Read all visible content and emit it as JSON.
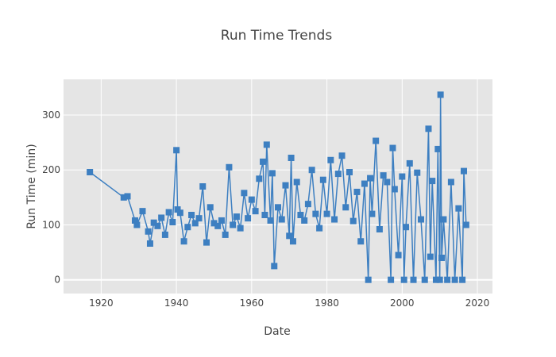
{
  "chart_data": {
    "type": "line",
    "title": "Run Time Trends",
    "xlabel": "Date",
    "ylabel": "Run Time (min)",
    "xlim": [
      1910,
      2024
    ],
    "ylim": [
      -25,
      365
    ],
    "x_ticks": [
      "1920",
      "1940",
      "1960",
      "1980",
      "2000",
      "2020"
    ],
    "y_ticks": [
      "0",
      "100",
      "200",
      "300"
    ],
    "grid": true,
    "legend": "none",
    "colors": {
      "series": "#3d7fc1",
      "plot_background": "#e5e5e5",
      "grid": "#ffffff"
    },
    "series": [
      {
        "marker": "square",
        "mode": "lines+markers",
        "x": [
          1917,
          1926,
          1927,
          1929,
          1929.5,
          1931,
          1932.5,
          1933,
          1934,
          1935,
          1936,
          1937,
          1938,
          1939,
          1940,
          1940.3,
          1941,
          1942,
          1943,
          1944,
          1945,
          1946,
          1947,
          1948,
          1949,
          1950,
          1951,
          1952,
          1953,
          1954,
          1955,
          1956,
          1957,
          1958,
          1959,
          1960,
          1961,
          1962,
          1963,
          1963.5,
          1964,
          1965,
          1965.5,
          1966,
          1967,
          1968,
          1969,
          1970,
          1970.5,
          1971,
          1972,
          1973,
          1974,
          1975,
          1976,
          1977,
          1978,
          1979,
          1980,
          1981,
          1982,
          1983,
          1984,
          1985,
          1986,
          1987,
          1988,
          1989,
          1990,
          1991,
          1991.5,
          1992,
          1993,
          1994,
          1995,
          1996,
          1997,
          1997.5,
          1998,
          1999,
          2000,
          2000.5,
          2001,
          2002,
          2003,
          2004,
          2005,
          2006,
          2007,
          2007.5,
          2008,
          2009,
          2009.5,
          2010,
          2010.2,
          2010.5,
          2011,
          2012,
          2013,
          2014,
          2015,
          2016,
          2016.4,
          2017
        ],
        "y": [
          196,
          150,
          152,
          108,
          100,
          125,
          88,
          66,
          104,
          98,
          113,
          82,
          123,
          105,
          236,
          128,
          122,
          70,
          96,
          118,
          103,
          112,
          170,
          68,
          132,
          103,
          98,
          108,
          82,
          205,
          100,
          115,
          94,
          158,
          112,
          146,
          125,
          184,
          215,
          118,
          246,
          108,
          194,
          25,
          132,
          110,
          172,
          80,
          222,
          70,
          178,
          118,
          108,
          138,
          200,
          120,
          94,
          182,
          120,
          218,
          110,
          193,
          226,
          132,
          196,
          107,
          160,
          70,
          175,
          0,
          185,
          120,
          253,
          92,
          190,
          178,
          0,
          240,
          165,
          45,
          188,
          0,
          96,
          212,
          0,
          195,
          110,
          0,
          275,
          42,
          180,
          0,
          238,
          0,
          337,
          40,
          110,
          0,
          178,
          0,
          130,
          0,
          198,
          100
        ]
      }
    ]
  }
}
